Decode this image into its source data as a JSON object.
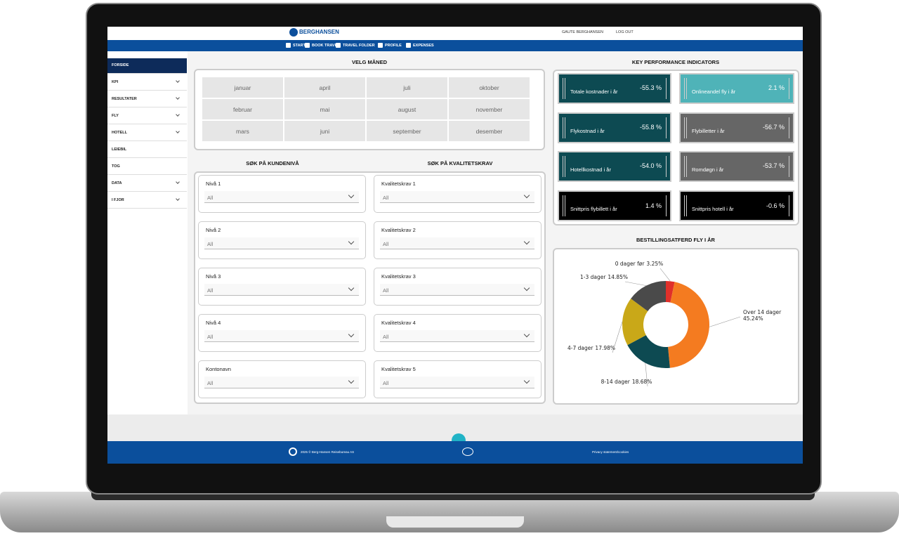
{
  "header": {
    "logo": "BERGHANSEN",
    "user": "GAUTE BERGHANSEN",
    "logout": "LOG OUT"
  },
  "nav": [
    "START",
    "BOOK TRAVEL",
    "TRAVEL FOLDER",
    "PROFILE",
    "EXPENSES"
  ],
  "sidebar": [
    {
      "label": "FORSIDE",
      "active": true,
      "expandable": false
    },
    {
      "label": "KPI",
      "active": false,
      "expandable": true
    },
    {
      "label": "RESULTATER",
      "active": false,
      "expandable": true
    },
    {
      "label": "FLY",
      "active": false,
      "expandable": true
    },
    {
      "label": "HOTELL",
      "active": false,
      "expandable": true
    },
    {
      "label": "LEIEBIL",
      "active": false,
      "expandable": false
    },
    {
      "label": "TOG",
      "active": false,
      "expandable": false
    },
    {
      "label": "DATA",
      "active": false,
      "expandable": true
    },
    {
      "label": "I FJOR",
      "active": false,
      "expandable": true
    }
  ],
  "month_panel": {
    "title": "VELG MÅNED",
    "months": [
      "januar",
      "februar",
      "mars",
      "april",
      "mai",
      "juni",
      "juli",
      "august",
      "september",
      "oktober",
      "november",
      "desember"
    ]
  },
  "filters": {
    "left_title": "SØK PÅ KUNDENIVÅ",
    "right_title": "SØK PÅ KVALITETSKRAV",
    "left": [
      {
        "label": "Nivå 1",
        "value": "All"
      },
      {
        "label": "Nivå 2",
        "value": "All"
      },
      {
        "label": "Nivå 3",
        "value": "All"
      },
      {
        "label": "Nivå 4",
        "value": "All"
      },
      {
        "label": "Kontonavn",
        "value": "All"
      }
    ],
    "right": [
      {
        "label": "Kvalitetskrav 1",
        "value": "All"
      },
      {
        "label": "Kvalitetskrav 2",
        "value": "All"
      },
      {
        "label": "Kvalitetskrav 3",
        "value": "All"
      },
      {
        "label": "Kvalitetskrav 4",
        "value": "All"
      },
      {
        "label": "Kvalitetskrav 5",
        "value": "All"
      }
    ]
  },
  "kpi": {
    "title": "KEY PERFORMANCE INDICATORS",
    "tiles": [
      {
        "label": "Totale kostnader i år",
        "value": "-55.3 %",
        "color": "#0d4a52"
      },
      {
        "label": "Onlineandel fly i år",
        "value": "2.1 %",
        "color": "#4fb3b8"
      },
      {
        "label": "Flykostnad i år",
        "value": "-55.8 %",
        "color": "#0d4a52"
      },
      {
        "label": "Flybilletter i år",
        "value": "-56.7 %",
        "color": "#666666"
      },
      {
        "label": "Hotellkostnad i år",
        "value": "-54.0 %",
        "color": "#0d4a52"
      },
      {
        "label": "Romdøgn i år",
        "value": "-53.7 %",
        "color": "#666666"
      },
      {
        "label": "Snittpris flybillett i år",
        "value": "1.4 %",
        "color": "#000000"
      },
      {
        "label": "Snittpris hotell i år",
        "value": "-0.6 %",
        "color": "#000000"
      }
    ]
  },
  "chart_data": {
    "type": "pie",
    "title": "BESTILLINGSATFERD FLY I ÅR",
    "categories": [
      "0 dager før",
      "Over 14 dager",
      "8-14 dager",
      "4-7 dager",
      "1-3 dager"
    ],
    "values": [
      3.25,
      45.24,
      18.68,
      17.98,
      14.85
    ],
    "value_labels": [
      "3.25%",
      "45.24%",
      "18.68%",
      "17.98%",
      "14.85%"
    ],
    "colors": [
      "#e0302a",
      "#f47b20",
      "#0d4a52",
      "#c9a818",
      "#4a4a4a"
    ]
  },
  "footer": {
    "copyright": "2025 © Berg-Hansen Reisebureau AS",
    "privacy": "Privacy statement/cookies"
  }
}
